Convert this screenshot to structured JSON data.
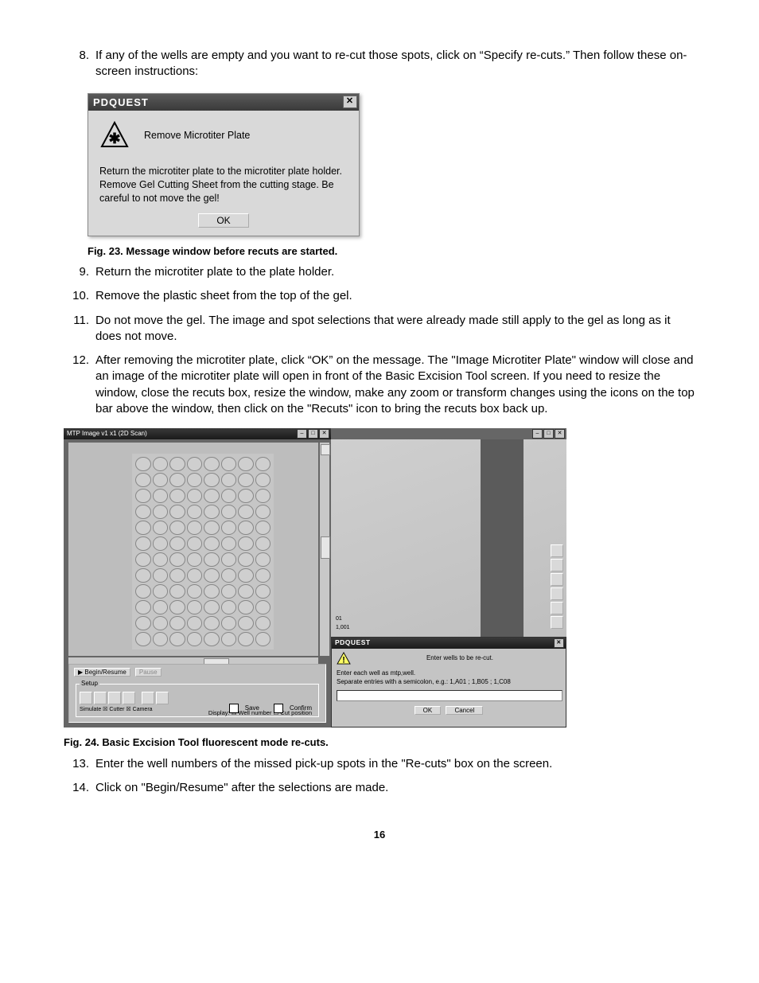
{
  "steps": {
    "s8": {
      "num": "8.",
      "text": "If any of the wells are empty and you want to re-cut those spots, click on “Specify re-cuts.” Then follow these on-screen instructions:"
    },
    "s9": {
      "num": "9.",
      "text": "Return the microtiter plate to the plate holder."
    },
    "s10": {
      "num": "10.",
      "text": "Remove the plastic sheet from the top of the gel."
    },
    "s11": {
      "num": "11.",
      "text": "Do not move the gel. The image and spot selections that were already made still apply to the gel as long as it does not move."
    },
    "s12": {
      "num": "12.",
      "text": "After removing the microtiter plate, click “OK” on the message. The \"Image Microtiter Plate\" window will close and an image of the microtiter plate will open in front of the Basic Excision Tool screen. If you need to resize the window, close the recuts box, resize the window, make any zoom or transform changes using the icons on the top bar above the window, then click on the \"Recuts\" icon to bring the recuts box back up."
    },
    "s13": {
      "num": "13.",
      "text": "Enter the well numbers of the missed pick-up spots in the \"Re-cuts\" box on the screen."
    },
    "s14": {
      "num": "14.",
      "text": "Click on \"Begin/Resume\" after the selections are made."
    }
  },
  "dialog23": {
    "title": "PDQUEST",
    "msg1": "Remove Microtiter Plate",
    "msg2": "Return the microtiter plate to the microtiter plate holder. Remove Gel Cutting Sheet from the cutting stage. Be careful to not move the gel!",
    "ok": "OK"
  },
  "caption23": "Fig. 23.  Message window before recuts are started.",
  "caption24": "Fig. 24.  Basic Excision Tool fluorescent mode re-cuts.",
  "fig24": {
    "left_title": "MTP Image v1 x1 (2D Scan)",
    "plate": {
      "rows": 12,
      "cols": 8
    },
    "panel": {
      "begin": "Begin/Resume",
      "pause": "Pause",
      "setup": "Setup",
      "display": "Display:",
      "wellnum": "Well number",
      "cutpos": "Cut position",
      "simulate": "Simulate",
      "cutter": "Cutter",
      "camera": "Camera",
      "save": "Save",
      "confirm": "Confirm"
    },
    "right": {
      "label1": "01",
      "label2": "1,001"
    },
    "recut_dialog": {
      "title": "PDQUEST",
      "prompt": "Enter wells to be re-cut.",
      "hint1": "Enter each well as mtp,well.",
      "hint2": "Separate entries with a semicolon, e.g.: 1,A01 ; 1,B05 ; 1,C08",
      "ok": "OK",
      "cancel": "Cancel"
    }
  },
  "pagenum": "16"
}
